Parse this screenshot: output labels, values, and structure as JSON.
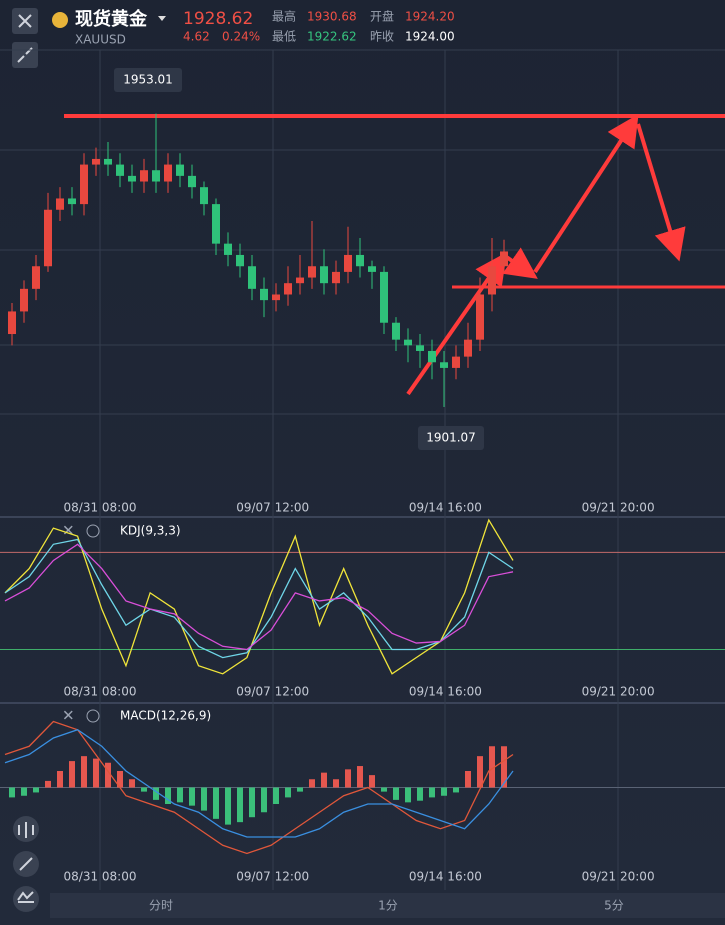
{
  "header": {
    "name": "现货黄金",
    "symbol": "XAUUSD",
    "price": "1928.62",
    "change": "4.62",
    "change_pct": "0.24%",
    "high_label": "最高",
    "high": "1930.68",
    "open_label": "开盘",
    "open": "1924.20",
    "low_label": "最低",
    "low": "1922.62",
    "prev_label": "昨收",
    "prev_close": "1924.00"
  },
  "chart_data": [
    {
      "type": "candlestick",
      "up_color": "#e8483f",
      "down_color": "#2fc27a",
      "ylim": [
        1885.5,
        1963.4
      ],
      "x_labels": [
        "08/31 08:00",
        "09/07 12:00",
        "09/14 16:00",
        "09/21 20:00"
      ],
      "open": [
        1914,
        1918,
        1922,
        1926,
        1936,
        1938,
        1937,
        1944,
        1945,
        1944,
        1942,
        1941,
        1943,
        1941,
        1944,
        1942,
        1940,
        1937,
        1930,
        1928,
        1926,
        1922,
        1920,
        1921,
        1923,
        1924,
        1926,
        1923,
        1925,
        1928,
        1926,
        1925,
        1916,
        1913,
        1912,
        1911,
        1909,
        1908,
        1910,
        1913,
        1921,
        1926
      ],
      "high": [
        1919.5,
        1923.5,
        1928,
        1939,
        1940,
        1940,
        1946,
        1947,
        1948,
        1946,
        1944,
        1945,
        1953.01,
        1946,
        1946,
        1944,
        1941,
        1938,
        1932,
        1930,
        1928,
        1924,
        1923,
        1926,
        1928,
        1934,
        1929,
        1927,
        1933,
        1931,
        1927,
        1926,
        1917,
        1915,
        1914,
        1913,
        1911,
        1912,
        1916,
        1924,
        1931,
        1930.68
      ],
      "low": [
        1912,
        1916,
        1920,
        1925,
        1934,
        1935,
        1935,
        1942,
        1942,
        1940,
        1939,
        1939,
        1939,
        1939,
        1940,
        1938,
        1935,
        1928,
        1926,
        1924,
        1920,
        1917,
        1918,
        1919,
        1921,
        1922,
        1921,
        1921,
        1923,
        1924,
        1922,
        1914,
        1911,
        1909,
        1908,
        1906,
        1901.07,
        1906,
        1908,
        1911,
        1918,
        1925
      ],
      "close": [
        1918,
        1922,
        1926,
        1936,
        1938,
        1937,
        1944,
        1945,
        1944,
        1942,
        1941,
        1943,
        1941,
        1944,
        1942,
        1940,
        1937,
        1930,
        1928,
        1926,
        1922,
        1920,
        1921,
        1923,
        1924,
        1926,
        1923,
        1925,
        1928,
        1926,
        1925,
        1916,
        1913,
        1912,
        1911,
        1909,
        1908,
        1910,
        1913,
        1921,
        1926,
        1928.62
      ]
    },
    {
      "type": "line",
      "title": "KDJ(9,3,3)",
      "ylim": [
        -5,
        100
      ],
      "ref_lines": [
        80,
        20
      ],
      "x_labels": [
        "08/31 08:00",
        "09/07 12:00",
        "09/14 16:00",
        "09/21 20:00"
      ],
      "series": [
        {
          "color": "#f0e53a",
          "values": [
            55,
            70,
            95,
            90,
            45,
            10,
            55,
            45,
            10,
            5,
            15,
            55,
            90,
            35,
            70,
            35,
            5,
            15,
            25,
            55,
            100,
            75
          ]
        },
        {
          "color": "#6fd6e8",
          "values": [
            55,
            65,
            85,
            88,
            60,
            35,
            45,
            40,
            22,
            15,
            18,
            40,
            70,
            45,
            55,
            40,
            20,
            20,
            25,
            40,
            80,
            70
          ]
        },
        {
          "color": "#d94fd9",
          "values": [
            50,
            58,
            75,
            85,
            70,
            50,
            45,
            42,
            30,
            22,
            20,
            32,
            55,
            50,
            52,
            44,
            30,
            24,
            25,
            35,
            65,
            68
          ]
        }
      ]
    },
    {
      "type": "macd",
      "title": "MACD(12,26,9)",
      "ylim": [
        -10,
        10
      ],
      "up_color": "#e5574f",
      "down_color": "#3bbf7a",
      "x_labels": [
        "08/31 08:00",
        "09/07 12:00",
        "09/14 16:00",
        "09/21 20:00"
      ],
      "histogram": [
        -1.2,
        -1.0,
        -0.6,
        0.8,
        2.0,
        3.2,
        3.8,
        3.5,
        3.0,
        2.0,
        1.0,
        -0.5,
        -1.5,
        -2.0,
        -1.8,
        -2.2,
        -2.8,
        -3.8,
        -4.5,
        -4.2,
        -3.6,
        -3.0,
        -2.0,
        -1.2,
        -0.5,
        1.0,
        1.8,
        1.0,
        2.2,
        2.6,
        1.5,
        -0.5,
        -1.5,
        -1.8,
        -1.6,
        -1.2,
        -1.0,
        -0.6,
        2.0,
        3.8,
        5.0,
        5.0
      ],
      "series": [
        {
          "color": "#e0573a",
          "values": [
            4,
            5,
            8,
            7,
            3,
            -1,
            -2,
            -3,
            -5,
            -7,
            -8,
            -7,
            -5,
            -3,
            -1,
            0,
            -2,
            -4,
            -5,
            -4,
            2,
            4
          ]
        },
        {
          "color": "#3a8fe0",
          "values": [
            3,
            4,
            6,
            7,
            5,
            2,
            0,
            -2,
            -3,
            -5,
            -6,
            -6,
            -6,
            -5,
            -3,
            -2,
            -2,
            -3,
            -4,
            -5,
            -2,
            2
          ]
        }
      ]
    }
  ],
  "tabs": [
    "分时",
    "1分",
    "5分"
  ]
}
